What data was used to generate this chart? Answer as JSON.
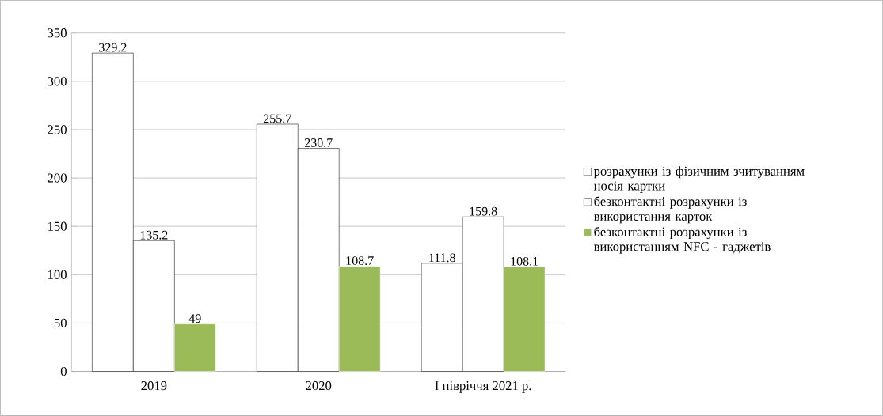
{
  "chart_data": {
    "type": "bar",
    "categories": [
      "2019",
      "2020",
      "I півріччя 2021 р."
    ],
    "series": [
      {
        "name": "розрахунки із фізичним зчитуванням носія картки",
        "color": "#ffffff",
        "values": [
          329.2,
          255.7,
          111.8
        ]
      },
      {
        "name": "безконтактні розрахунки із використання карток",
        "color": "#ffffff",
        "values": [
          135.2,
          230.7,
          159.8
        ]
      },
      {
        "name": "безконтактні розрахунки із використанням NFC - гаджетів",
        "color": "#9bbb59",
        "values": [
          49,
          108.7,
          108.1
        ]
      }
    ],
    "ylim": [
      0,
      350
    ],
    "yticks": [
      0,
      50,
      100,
      150,
      200,
      250,
      300,
      350
    ],
    "grid": "y",
    "legend": "right",
    "data_labels": true
  }
}
